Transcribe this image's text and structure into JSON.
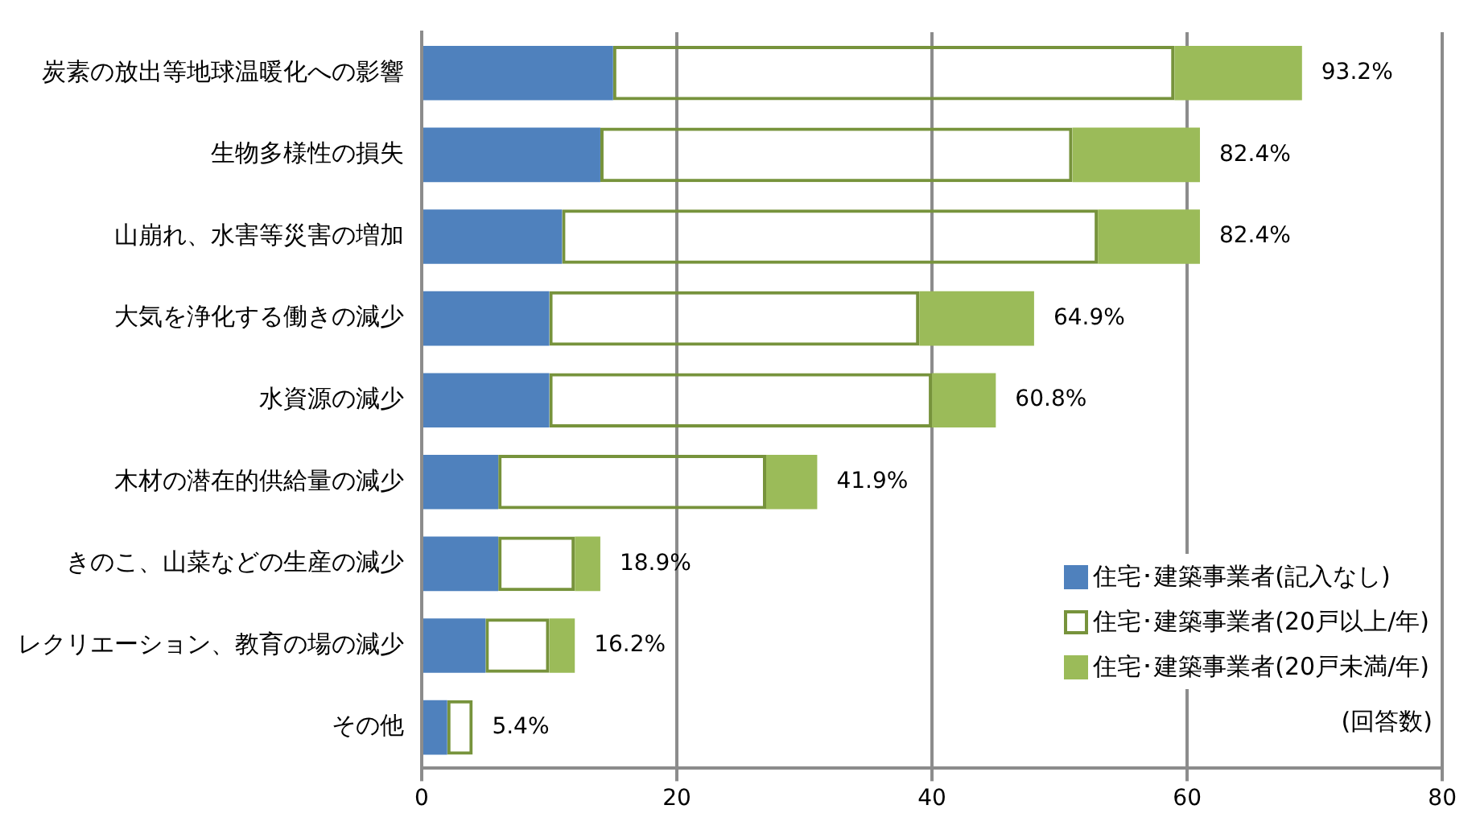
{
  "chart_data": {
    "type": "bar",
    "orientation": "horizontal",
    "stacked": true,
    "categories": [
      "炭素の放出等地球温暖化への影響",
      "生物多様性の損失",
      "山崩れ、水害等災害の増加",
      "大気を浄化する働きの減少",
      "水資源の減少",
      "木材の潜在的供給量の減少",
      "きのこ、山菜などの生産の減少",
      "レクリエーション、教育の場の減少",
      "その他"
    ],
    "series": [
      {
        "name": "住宅･建築事業者(記入なし)",
        "color": "#4f81bd",
        "values": [
          15,
          14,
          11,
          10,
          10,
          6,
          6,
          5,
          2
        ]
      },
      {
        "name": "住宅･建築事業者(20戸以上/年)",
        "color": "#77933c",
        "values": [
          44,
          37,
          42,
          29,
          30,
          21,
          6,
          5,
          2
        ]
      },
      {
        "name": "住宅･建築事業者(20戸未満/年)",
        "color": "#9bbb59",
        "values": [
          10,
          10,
          8,
          9,
          5,
          4,
          2,
          2,
          0
        ]
      }
    ],
    "xlim": [
      0,
      80
    ],
    "xticks": [
      0,
      20,
      40,
      60,
      80
    ],
    "grid": "x",
    "legend": "bottom right",
    "annotations": [
      {
        "text": "93.2%",
        "x": 69,
        "y": "炭素の放出等地球温暖化への影響"
      },
      {
        "text": "82.4%",
        "x": 61,
        "y": "生物多様性の損失"
      },
      {
        "text": "82.4%",
        "x": 61,
        "y": "山崩れ、水害等災害の増加"
      },
      {
        "text": "64.9%",
        "x": 48,
        "y": "大気を浄化する働きの減少"
      },
      {
        "text": "60.8%",
        "x": 45,
        "y": "水資源の減少"
      },
      {
        "text": "41.9%",
        "x": 31,
        "y": "木材の潜在的供給量の減少"
      },
      {
        "text": "18.9%",
        "x": 14,
        "y": "きのこ、山菜などの生産の減少"
      },
      {
        "text": "16.2%",
        "x": 12,
        "y": "レクリエーション、教育の場の減少"
      },
      {
        "text": "5.4%",
        "x": 4,
        "y": "その他"
      },
      "(回答数)"
    ]
  }
}
